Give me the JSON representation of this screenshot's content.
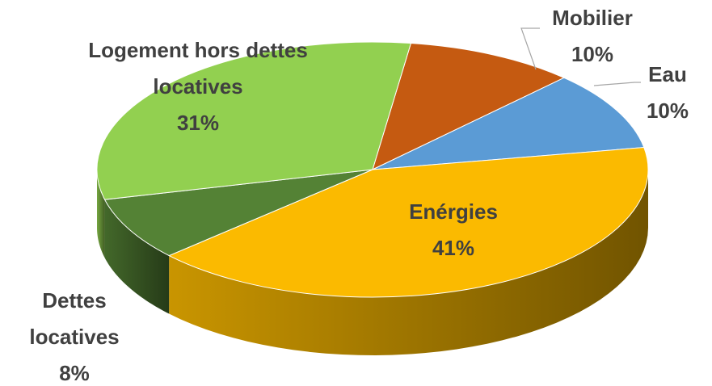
{
  "chart_data": {
    "type": "pie",
    "categories": [
      "Mobilier",
      "Eau",
      "Enérgies",
      "Dettes locatives",
      "Logement hors dettes locatives"
    ],
    "values": [
      10,
      10,
      41,
      8,
      31
    ],
    "value_labels": [
      "10%",
      "10%",
      "41%",
      "8%",
      "31%"
    ],
    "colors": [
      "#c55a11",
      "#5b9bd5",
      "#fbba00",
      "#548235",
      "#92d050"
    ],
    "three_d": true
  }
}
